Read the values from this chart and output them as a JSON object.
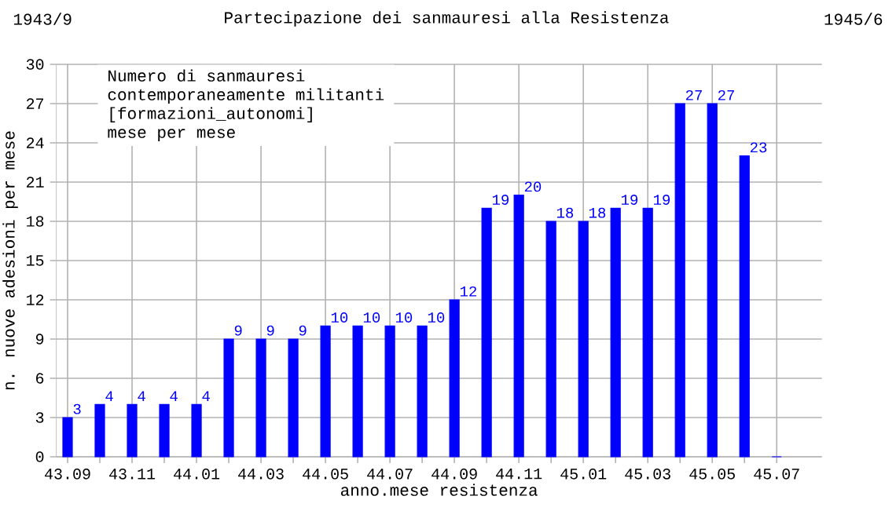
{
  "chart_data": {
    "type": "bar",
    "title": "Partecipazione dei sanmauresi alla Resistenza",
    "xlabel": "anno.mese resistenza",
    "ylabel": "n. nuove adesioni per mese",
    "annotations": [
      "1943/9",
      "1945/6",
      "Numero di sanmauresi",
      "contemporaneamente militanti",
      "[formazioni_autonomi]",
      "mese per mese"
    ],
    "categories": [
      "43.09",
      null,
      "43.11",
      null,
      "44.01",
      null,
      "44.03",
      null,
      "44.05",
      null,
      "44.07",
      null,
      "44.09",
      null,
      "44.11",
      null,
      "45.01",
      null,
      "45.03",
      null,
      "45.05",
      null,
      "45.07"
    ],
    "values": [
      3,
      4,
      4,
      4,
      4,
      9,
      9,
      9,
      10,
      10,
      10,
      10,
      12,
      19,
      20,
      18,
      18,
      19,
      19,
      27,
      27,
      23,
      0
    ],
    "value_labels": [
      "3",
      "4",
      "4",
      "4",
      "4",
      "9",
      "9",
      "9",
      "10",
      "10",
      "10",
      "10",
      "12",
      "19",
      "20",
      "18",
      "18",
      "19",
      "19",
      "27",
      "27",
      "23",
      null
    ],
    "color": "#0000ff",
    "ylim": [
      0,
      30
    ],
    "yticks": [
      0,
      3,
      6,
      9,
      12,
      15,
      18,
      21,
      24,
      27,
      30
    ],
    "grid": true
  }
}
